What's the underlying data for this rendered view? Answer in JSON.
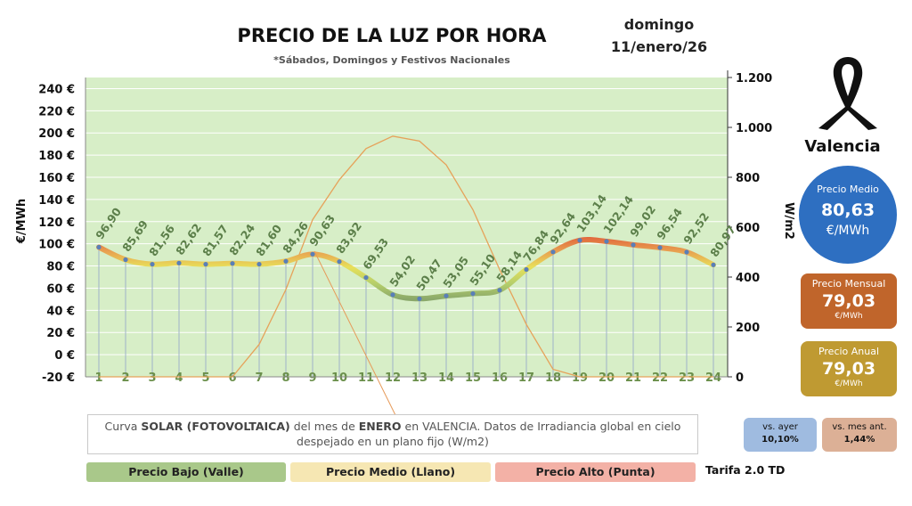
{
  "header": {
    "title": "PRECIO DE LA LUZ POR HORA",
    "subtitle": "*Sábados, Domingos y Festivos Nacionales",
    "day": "domingo",
    "date": "11/enero/26"
  },
  "location": "Valencia",
  "stats": {
    "medio": {
      "label": "Precio Medio",
      "value": "80,63",
      "unit": "€/MWh",
      "color": "#2e6fc1"
    },
    "mensual": {
      "label": "Precio Mensual",
      "value": "79,03",
      "unit": "€/MWh",
      "color": "#c0652b"
    },
    "anual": {
      "label": "Precio Anual",
      "value": "79,03",
      "unit": "€/MWh",
      "color": "#bf9a32"
    },
    "vs_ayer": {
      "label": "vs. ayer",
      "value": "10,10%",
      "color": "#9fbbe0"
    },
    "vs_mes": {
      "label": "vs. mes ant.",
      "value": "1,44%",
      "color": "#dcb096"
    }
  },
  "note": {
    "pre": "Curva ",
    "b1": "SOLAR (FOTOVOLTAICA)",
    "mid": " del mes de ",
    "b2": "ENERO",
    "post": " en VALENCIA. Datos de Irradiancia global en cielo despejado en un plano fijo (W/m2)"
  },
  "legend": [
    {
      "label": "Precio Bajo (Valle)",
      "color": "#a9c88a"
    },
    {
      "label": "Precio Medio (Llano)",
      "color": "#f6e7b3"
    },
    {
      "label": "Precio Alto (Punta)",
      "color": "#f3b1a6"
    }
  ],
  "tarifa": "Tarifa 2.0 TD",
  "chart_data": {
    "type": "line",
    "x": [
      1,
      2,
      3,
      4,
      5,
      6,
      7,
      8,
      9,
      10,
      11,
      12,
      13,
      14,
      15,
      16,
      17,
      18,
      19,
      20,
      21,
      22,
      23,
      24
    ],
    "series": [
      {
        "name": "precio",
        "values": [
          96.9,
          85.69,
          81.56,
          82.62,
          81.57,
          82.24,
          81.6,
          84.26,
          90.63,
          83.92,
          69.53,
          54.02,
          50.47,
          53.05,
          55.1,
          58.14,
          76.84,
          92.64,
          103.14,
          102.14,
          99.02,
          96.54,
          92.52,
          80.97
        ],
        "labels": [
          "96,90",
          "85,69",
          "81,56",
          "82,62",
          "81,57",
          "82,24",
          "81,60",
          "84,26",
          "90,63",
          "83,92",
          "69,53",
          "54,02",
          "50,47",
          "53,05",
          "55,10",
          "58,14",
          "76,84",
          "92,64",
          "103,14",
          "102,14",
          "99,02",
          "96,54",
          "92,52",
          "80,97"
        ]
      },
      {
        "name": "irradiancia",
        "values": [
          0,
          0,
          0,
          0,
          0,
          0,
          130,
          350,
          630,
          790,
          915,
          965,
          945,
          850,
          670,
          430,
          210,
          30,
          0,
          0,
          0,
          0,
          0,
          0
        ]
      }
    ],
    "ylabel": "€/MWh",
    "ylabel_right": "W/m2",
    "ylim": [
      -20,
      250
    ],
    "ylim_right": [
      0,
      1200
    ],
    "yticks": [
      -20,
      0,
      20,
      40,
      60,
      80,
      100,
      120,
      140,
      160,
      180,
      200,
      220,
      240
    ],
    "ytick_labels": [
      "-20 €",
      "0 €",
      "20 €",
      "40 €",
      "60 €",
      "80 €",
      "100 €",
      "120 €",
      "140 €",
      "160 €",
      "180 €",
      "200 €",
      "220 €",
      "240 €"
    ],
    "yticks_right": [
      0,
      200,
      400,
      600,
      800,
      1000,
      1200
    ],
    "ytick_labels_right": [
      "0",
      "200",
      "400",
      "600",
      "800",
      "1.000",
      "1.200"
    ],
    "colors": {
      "low": "#8aa86a",
      "mid": "#e8e05a",
      "high": "#e0603a",
      "solar": "#e6a25a",
      "plot_bg": "#d7eec7"
    }
  }
}
